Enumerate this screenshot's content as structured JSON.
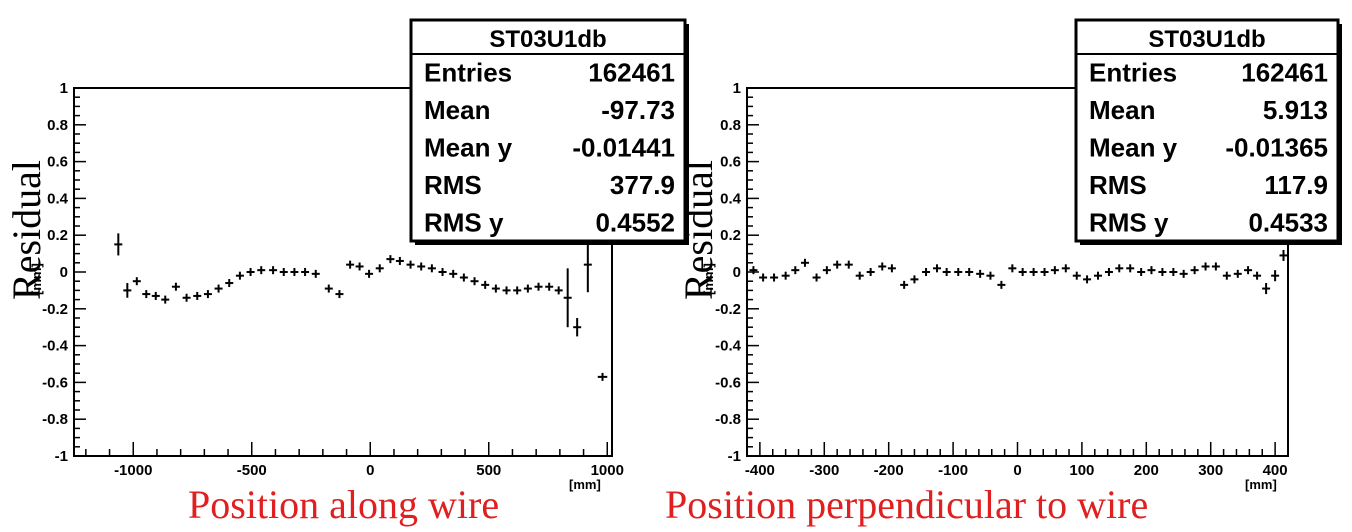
{
  "chart_data": [
    {
      "type": "scatter",
      "ylabel": "Residual",
      "yunit": "[mm]",
      "xlabel": "Position along wire",
      "xunit": "[mm]",
      "xlim": [
        -1250,
        1020
      ],
      "ylim": [
        -1,
        1
      ],
      "xticks": [
        -1000,
        -500,
        0,
        500,
        1000
      ],
      "yticks": [
        -1,
        -0.8,
        -0.6,
        -0.4,
        -0.2,
        0,
        0.2,
        0.4,
        0.6,
        0.8,
        1
      ],
      "stats": {
        "title": "ST03U1db",
        "rows": [
          {
            "label": "Entries",
            "value": "162461"
          },
          {
            "label": "Mean",
            "value": "-97.73"
          },
          {
            "label": "Mean y",
            "value": "-0.01441"
          },
          {
            "label": "RMS",
            "value": "377.9"
          },
          {
            "label": "RMS y",
            "value": "0.4552"
          }
        ]
      },
      "points": [
        {
          "x": -1063,
          "y": 0.15,
          "yerr": 0.06,
          "xerr": 0
        },
        {
          "x": -1025,
          "y": -0.1,
          "yerr": 0.04,
          "xerr": 6
        },
        {
          "x": -985,
          "y": -0.05,
          "yerr": 0.02,
          "xerr": 10
        },
        {
          "x": -945,
          "y": -0.12,
          "yerr": 0.015,
          "xerr": 10
        },
        {
          "x": -905,
          "y": -0.13,
          "yerr": 0.01,
          "xerr": 10
        },
        {
          "x": -865,
          "y": -0.15,
          "yerr": 0.01,
          "xerr": 12
        },
        {
          "x": -820,
          "y": -0.08,
          "yerr": 0.01,
          "xerr": 12
        },
        {
          "x": -775,
          "y": -0.14,
          "yerr": 0.01,
          "xerr": 14
        },
        {
          "x": -730,
          "y": -0.13,
          "yerr": 0.01,
          "xerr": 14
        },
        {
          "x": -685,
          "y": -0.12,
          "yerr": 0.01,
          "xerr": 14
        },
        {
          "x": -640,
          "y": -0.09,
          "yerr": 0,
          "xerr": 14
        },
        {
          "x": -595,
          "y": -0.06,
          "yerr": 0,
          "xerr": 14
        },
        {
          "x": -550,
          "y": -0.02,
          "yerr": 0,
          "xerr": 14
        },
        {
          "x": -505,
          "y": 0.0,
          "yerr": 0,
          "xerr": 14
        },
        {
          "x": -460,
          "y": 0.01,
          "yerr": 0,
          "xerr": 14
        },
        {
          "x": -410,
          "y": 0.01,
          "yerr": 0,
          "xerr": 14
        },
        {
          "x": -365,
          "y": 0.0,
          "yerr": 0,
          "xerr": 14
        },
        {
          "x": -320,
          "y": 0.0,
          "yerr": 0,
          "xerr": 14
        },
        {
          "x": -275,
          "y": 0.0,
          "yerr": 0,
          "xerr": 14
        },
        {
          "x": -230,
          "y": -0.01,
          "yerr": 0,
          "xerr": 14
        },
        {
          "x": -175,
          "y": -0.09,
          "yerr": 0,
          "xerr": 14
        },
        {
          "x": -130,
          "y": -0.12,
          "yerr": 0,
          "xerr": 14
        },
        {
          "x": -85,
          "y": 0.04,
          "yerr": 0.01,
          "xerr": 14
        },
        {
          "x": -45,
          "y": 0.03,
          "yerr": 0.01,
          "xerr": 14
        },
        {
          "x": -5,
          "y": -0.01,
          "yerr": 0.01,
          "xerr": 14
        },
        {
          "x": 40,
          "y": 0.02,
          "yerr": 0.01,
          "xerr": 14
        },
        {
          "x": 85,
          "y": 0.07,
          "yerr": 0,
          "xerr": 14
        },
        {
          "x": 125,
          "y": 0.06,
          "yerr": 0,
          "xerr": 14
        },
        {
          "x": 170,
          "y": 0.04,
          "yerr": 0,
          "xerr": 14
        },
        {
          "x": 215,
          "y": 0.03,
          "yerr": 0,
          "xerr": 14
        },
        {
          "x": 260,
          "y": 0.02,
          "yerr": 0,
          "xerr": 14
        },
        {
          "x": 305,
          "y": 0.0,
          "yerr": 0,
          "xerr": 14
        },
        {
          "x": 350,
          "y": -0.01,
          "yerr": 0,
          "xerr": 14
        },
        {
          "x": 395,
          "y": -0.03,
          "yerr": 0,
          "xerr": 14
        },
        {
          "x": 440,
          "y": -0.05,
          "yerr": 0,
          "xerr": 14
        },
        {
          "x": 485,
          "y": -0.07,
          "yerr": 0,
          "xerr": 14
        },
        {
          "x": 530,
          "y": -0.09,
          "yerr": 0,
          "xerr": 14
        },
        {
          "x": 575,
          "y": -0.1,
          "yerr": 0,
          "xerr": 14
        },
        {
          "x": 620,
          "y": -0.1,
          "yerr": 0,
          "xerr": 14
        },
        {
          "x": 665,
          "y": -0.09,
          "yerr": 0,
          "xerr": 14
        },
        {
          "x": 710,
          "y": -0.08,
          "yerr": 0,
          "xerr": 14
        },
        {
          "x": 755,
          "y": -0.08,
          "yerr": 0.01,
          "xerr": 12
        },
        {
          "x": 795,
          "y": -0.1,
          "yerr": 0.02,
          "xerr": 10
        },
        {
          "x": 833,
          "y": -0.14,
          "yerr": 0.16,
          "xerr": 0
        },
        {
          "x": 873,
          "y": -0.3,
          "yerr": 0.05,
          "xerr": 8
        },
        {
          "x": 918,
          "y": 0.04,
          "yerr": 0.15,
          "xerr": 10
        },
        {
          "x": 980,
          "y": -0.57,
          "yerr": 0,
          "xerr": 20
        }
      ]
    },
    {
      "type": "scatter",
      "ylabel": "Residual",
      "yunit": "[mm]",
      "xlabel": "Position perpendicular to wire",
      "xunit": "[mm]",
      "xlim": [
        -420,
        420
      ],
      "ylim": [
        -1,
        1
      ],
      "xticks": [
        -400,
        -300,
        -200,
        -100,
        0,
        100,
        200,
        300,
        400
      ],
      "yticks": [
        -1,
        -0.8,
        -0.6,
        -0.4,
        -0.2,
        0,
        0.2,
        0.4,
        0.6,
        0.8,
        1
      ],
      "stats": {
        "title": "ST03U1db",
        "rows": [
          {
            "label": "Entries",
            "value": "162461"
          },
          {
            "label": "Mean",
            "value": "5.913"
          },
          {
            "label": "Mean y",
            "value": "-0.01365"
          },
          {
            "label": "RMS",
            "value": "117.9"
          },
          {
            "label": "RMS y",
            "value": "0.4533"
          }
        ]
      },
      "points": [
        {
          "x": -410,
          "y": 0.01,
          "yerr": 0.02,
          "xerr": 6
        },
        {
          "x": -395,
          "y": -0.03,
          "yerr": 0.02,
          "xerr": 6
        },
        {
          "x": -378,
          "y": -0.03,
          "yerr": 0.02,
          "xerr": 6
        },
        {
          "x": -360,
          "y": -0.02,
          "yerr": 0.02,
          "xerr": 6
        },
        {
          "x": -345,
          "y": 0.01,
          "yerr": 0.02,
          "xerr": 6
        },
        {
          "x": -330,
          "y": 0.05,
          "yerr": 0.02,
          "xerr": 6
        },
        {
          "x": -312,
          "y": -0.03,
          "yerr": 0.02,
          "xerr": 6
        },
        {
          "x": -296,
          "y": 0.01,
          "yerr": 0.02,
          "xerr": 6
        },
        {
          "x": -280,
          "y": 0.04,
          "yerr": 0.02,
          "xerr": 6
        },
        {
          "x": -262,
          "y": 0.04,
          "yerr": 0.02,
          "xerr": 6
        },
        {
          "x": -245,
          "y": -0.02,
          "yerr": 0.02,
          "xerr": 6
        },
        {
          "x": -228,
          "y": 0.0,
          "yerr": 0.02,
          "xerr": 6
        },
        {
          "x": -210,
          "y": 0.03,
          "yerr": 0.02,
          "xerr": 6
        },
        {
          "x": -195,
          "y": 0.02,
          "yerr": 0,
          "xerr": 6
        },
        {
          "x": -176,
          "y": -0.07,
          "yerr": 0,
          "xerr": 6
        },
        {
          "x": -160,
          "y": -0.04,
          "yerr": 0,
          "xerr": 6
        },
        {
          "x": -142,
          "y": 0.0,
          "yerr": 0,
          "xerr": 6
        },
        {
          "x": -125,
          "y": 0.02,
          "yerr": 0,
          "xerr": 6
        },
        {
          "x": -110,
          "y": 0.0,
          "yerr": 0,
          "xerr": 6
        },
        {
          "x": -92,
          "y": 0.0,
          "yerr": 0,
          "xerr": 6
        },
        {
          "x": -75,
          "y": 0.0,
          "yerr": 0,
          "xerr": 6
        },
        {
          "x": -58,
          "y": -0.01,
          "yerr": 0,
          "xerr": 6
        },
        {
          "x": -42,
          "y": -0.02,
          "yerr": 0,
          "xerr": 6
        },
        {
          "x": -25,
          "y": -0.07,
          "yerr": 0,
          "xerr": 6
        },
        {
          "x": -8,
          "y": 0.02,
          "yerr": 0,
          "xerr": 6
        },
        {
          "x": 8,
          "y": 0.0,
          "yerr": 0,
          "xerr": 6
        },
        {
          "x": 25,
          "y": 0.0,
          "yerr": 0,
          "xerr": 6
        },
        {
          "x": 42,
          "y": 0.0,
          "yerr": 0,
          "xerr": 6
        },
        {
          "x": 58,
          "y": 0.01,
          "yerr": 0,
          "xerr": 6
        },
        {
          "x": 75,
          "y": 0.02,
          "yerr": 0,
          "xerr": 6
        },
        {
          "x": 92,
          "y": -0.02,
          "yerr": 0,
          "xerr": 6
        },
        {
          "x": 108,
          "y": -0.04,
          "yerr": 0,
          "xerr": 6
        },
        {
          "x": 125,
          "y": -0.02,
          "yerr": 0,
          "xerr": 6
        },
        {
          "x": 142,
          "y": 0.0,
          "yerr": 0,
          "xerr": 6
        },
        {
          "x": 158,
          "y": 0.02,
          "yerr": 0,
          "xerr": 6
        },
        {
          "x": 175,
          "y": 0.02,
          "yerr": 0,
          "xerr": 6
        },
        {
          "x": 192,
          "y": 0.0,
          "yerr": 0,
          "xerr": 6
        },
        {
          "x": 208,
          "y": 0.01,
          "yerr": 0,
          "xerr": 6
        },
        {
          "x": 225,
          "y": 0.0,
          "yerr": 0,
          "xerr": 6
        },
        {
          "x": 242,
          "y": 0.0,
          "yerr": 0,
          "xerr": 6
        },
        {
          "x": 258,
          "y": -0.01,
          "yerr": 0.01,
          "xerr": 6
        },
        {
          "x": 275,
          "y": 0.01,
          "yerr": 0.01,
          "xerr": 6
        },
        {
          "x": 292,
          "y": 0.03,
          "yerr": 0.02,
          "xerr": 6
        },
        {
          "x": 308,
          "y": 0.03,
          "yerr": 0.02,
          "xerr": 6
        },
        {
          "x": 325,
          "y": -0.02,
          "yerr": 0.02,
          "xerr": 6
        },
        {
          "x": 342,
          "y": -0.01,
          "yerr": 0.02,
          "xerr": 6
        },
        {
          "x": 358,
          "y": 0.01,
          "yerr": 0.02,
          "xerr": 6
        },
        {
          "x": 372,
          "y": -0.02,
          "yerr": 0.02,
          "xerr": 6
        },
        {
          "x": 386,
          "y": -0.09,
          "yerr": 0.03,
          "xerr": 5
        },
        {
          "x": 400,
          "y": -0.02,
          "yerr": 0.03,
          "xerr": 5
        },
        {
          "x": 413,
          "y": 0.09,
          "yerr": 0.03,
          "xerr": 4
        }
      ]
    }
  ]
}
